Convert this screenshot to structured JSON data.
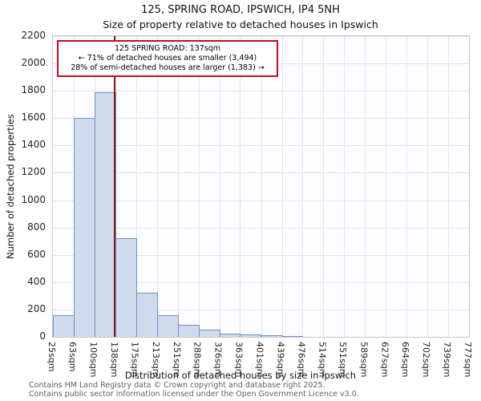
{
  "title": "125, SPRING ROAD, IPSWICH, IP4 5NH",
  "subtitle": "Size of property relative to detached houses in Ipswich",
  "annotation": {
    "line1": "125 SPRING ROAD: 137sqm",
    "line2": "← 71% of detached houses are smaller (3,494)",
    "line3": "28% of semi-detached houses are larger (1,383) →"
  },
  "footer": {
    "line1": "Contains HM Land Registry data © Crown copyright and database right 2025.",
    "line2": "Contains public sector information licensed under the Open Government Licence v3.0."
  },
  "chart_data": {
    "type": "bar",
    "title": "125, SPRING ROAD, IPSWICH, IP4 5NH — Size of property relative to detached houses in Ipswich",
    "xlabel": "Distribution of detached houses by size in Ipswich",
    "ylabel": "Number of detached properties",
    "bin_edges_sqm": [
      25,
      63,
      100,
      138,
      175,
      213,
      251,
      288,
      326,
      363,
      401,
      439,
      476,
      514,
      551,
      589,
      627,
      664,
      702,
      739,
      777
    ],
    "x_tick_labels": [
      "25sqm",
      "63sqm",
      "100sqm",
      "138sqm",
      "175sqm",
      "213sqm",
      "251sqm",
      "288sqm",
      "326sqm",
      "363sqm",
      "401sqm",
      "439sqm",
      "476sqm",
      "514sqm",
      "551sqm",
      "589sqm",
      "627sqm",
      "664sqm",
      "702sqm",
      "739sqm",
      "777sqm"
    ],
    "values": [
      160,
      1600,
      1790,
      720,
      320,
      160,
      90,
      50,
      25,
      15,
      10,
      5,
      0,
      0,
      0,
      0,
      0,
      0,
      0,
      0
    ],
    "ylim": [
      0,
      2200
    ],
    "y_ticks": [
      0,
      200,
      400,
      600,
      800,
      1000,
      1200,
      1400,
      1600,
      1800,
      2000,
      2200
    ],
    "marker_value_sqm": 137,
    "grid": true,
    "legend": "none",
    "colors": {
      "bar_fill": "#cfdaee",
      "bar_border": "#7090c4",
      "marker_line": "#8b1a1a",
      "annotation_border": "#bb1122",
      "grid": "#dde3f0"
    }
  }
}
